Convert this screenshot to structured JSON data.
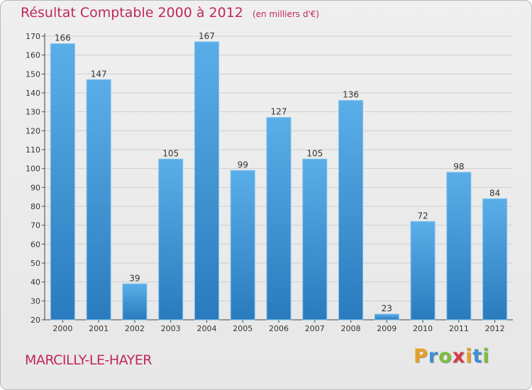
{
  "header": {
    "title": "Résultat Comptable 2000 à 2012",
    "unit": "(en milliers d'€)"
  },
  "footer": {
    "place": "MARCILLY-LE-HAYER",
    "brand": {
      "letters": [
        "P",
        "r",
        "o",
        "x",
        "i",
        "t",
        "i"
      ],
      "colors": [
        "#e8a023",
        "#3d8fd4",
        "#7bbf3a",
        "#d63a48",
        "#e8a023",
        "#3d8fd4",
        "#7bbf3a"
      ]
    }
  },
  "colors": {
    "accent": "#c0285b",
    "bar_light": "#5aaee8",
    "bar_dark": "#2a7bbd",
    "grid": "#cfcfcf"
  },
  "chart_data": {
    "type": "bar",
    "title": "Résultat Comptable 2000 à 2012",
    "subtitle": "(en milliers d'€)",
    "xlabel": "",
    "ylabel": "",
    "categories": [
      "2000",
      "2001",
      "2002",
      "2003",
      "2004",
      "2005",
      "2006",
      "2007",
      "2008",
      "2009",
      "2010",
      "2011",
      "2012"
    ],
    "values": [
      166,
      147,
      39,
      105,
      167,
      99,
      127,
      105,
      136,
      23,
      72,
      98,
      84
    ],
    "ylim": [
      20,
      170
    ],
    "yticks": [
      20,
      30,
      40,
      50,
      60,
      70,
      80,
      90,
      100,
      110,
      120,
      130,
      140,
      150,
      160,
      170
    ],
    "grid": true,
    "data_labels": true
  }
}
